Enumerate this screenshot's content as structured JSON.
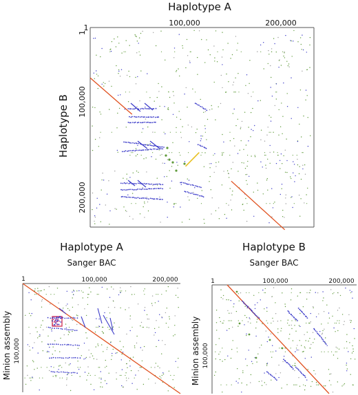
{
  "figure": {
    "main": {
      "title": "Haplotype A",
      "ylabel": "Haplotype B",
      "xticks": [
        "1",
        "100,000",
        "200,000"
      ],
      "yticks": [
        "1",
        "100,000",
        "200,000"
      ]
    },
    "left": {
      "title": "Haplotype A",
      "subtitle": "Sanger BAC",
      "ylabel": "Minion assembly",
      "xticks": [
        "1",
        "100,000",
        "200,000"
      ],
      "yticks": [
        "100,000"
      ]
    },
    "right": {
      "title": "Haplotype B",
      "subtitle": "Sanger BAC",
      "ylabel": "Minion assembly",
      "xticks": [
        "1",
        "100,000",
        "200,000"
      ],
      "yticks": [
        "100,000"
      ]
    }
  },
  "colors": {
    "forward": "#e0501e",
    "reverse": "#3a3ac8",
    "noise": "#5f9a3a",
    "inversion": "#e8c020",
    "frame": "#555555"
  },
  "chart_data": [
    {
      "type": "scatter",
      "title": "Haplotype A",
      "xlabel": "",
      "ylabel": "Haplotype B",
      "xlim": [
        1,
        230000
      ],
      "ylim": [
        1,
        230000
      ],
      "series": [
        {
          "segments": [
            [
              1,
              58000,
              43000,
              100000
            ],
            [
              145000,
              177000,
              200000,
              233000
            ]
          ]
        },
        {
          "segments": [
            [
              46000,
              93000,
              62000,
              96000
            ],
            [
              40000,
              138000,
              60000,
              142000
            ],
            [
              40000,
              168000,
              62000,
              172000
            ],
            [
              98000,
              160000,
              112000,
              144000
            ]
          ]
        }
      ]
    },
    {
      "type": "scatter",
      "title": "Haplotype A",
      "xlabel": "Sanger BAC",
      "ylabel": "Minion assembly",
      "xlim": [
        1,
        230000
      ],
      "ylim": [
        1,
        230000
      ],
      "series": [
        {
          "segments": [
            [
              1,
              1,
              230000,
              230000
            ]
          ]
        }
      ]
    },
    {
      "type": "scatter",
      "title": "Haplotype B",
      "xlabel": "Sanger BAC",
      "ylabel": "Minion assembly",
      "xlim": [
        1,
        230000
      ],
      "ylim": [
        1,
        200000
      ],
      "series": [
        {
          "segments": [
            [
              25000,
              1,
              230000,
              200000
            ]
          ]
        }
      ]
    }
  ]
}
